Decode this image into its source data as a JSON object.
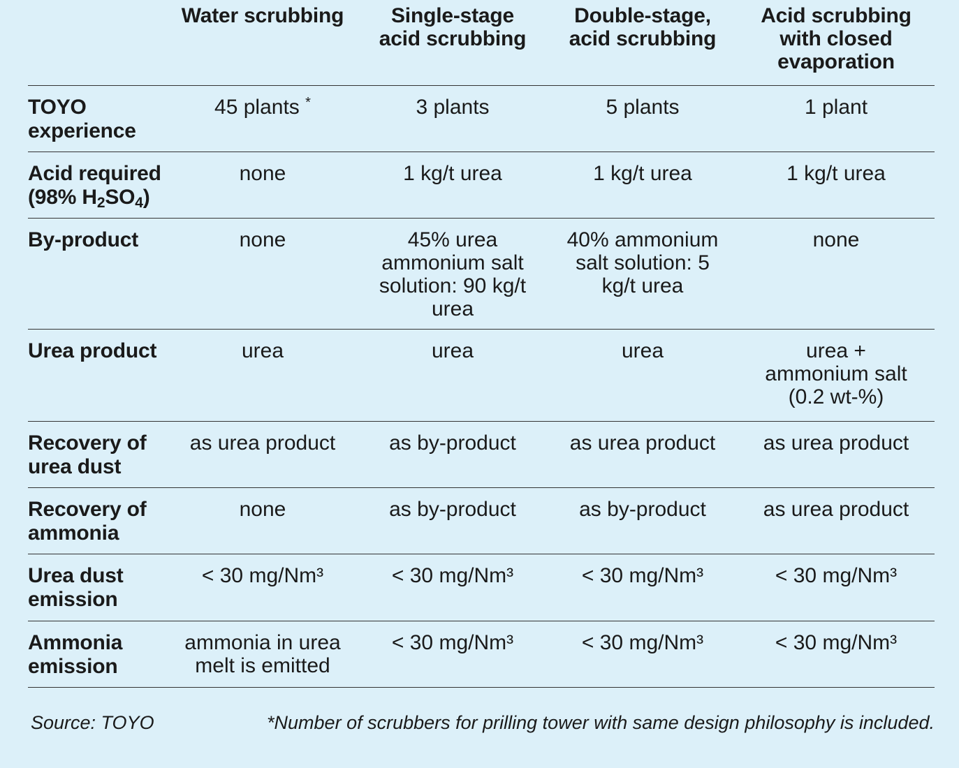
{
  "header": {
    "row_label": "",
    "columns": [
      "Water scrubbing",
      "Single-stage acid scrubbing",
      "Double-stage, acid scrubbing",
      "Acid scrubbing with closed evaporation"
    ]
  },
  "rows": [
    {
      "label": "TOYO experience",
      "cells": [
        "45 plants",
        "3 plants",
        "5 plants",
        "1 plant"
      ],
      "footnote_mark": "*"
    },
    {
      "label_main": "Acid required",
      "label_sub": "(98% H",
      "label_h2_sub": "2",
      "label_so": "SO",
      "label_so_sub": "4",
      "label_close": ")",
      "cells": [
        "none",
        "1 kg/t urea",
        "1 kg/t urea",
        "1 kg/t urea"
      ]
    },
    {
      "label": "By-product",
      "cells": [
        "none",
        "45% urea ammonium salt solution: 90 kg/t urea",
        "40% ammonium salt solution: 5 kg/t urea",
        "none"
      ]
    },
    {
      "label": "Urea product",
      "cells": [
        "urea",
        "urea",
        "urea",
        "urea + ammonium salt (0.2 wt-%)"
      ]
    },
    {
      "label": "Recovery of urea dust",
      "cells": [
        "as urea product",
        "as by-product",
        "as urea product",
        "as urea product"
      ]
    },
    {
      "label": "Recovery of ammonia",
      "cells": [
        "none",
        "as by-product",
        "as by-product",
        "as urea product"
      ]
    },
    {
      "label": "Urea dust emission",
      "cells": [
        "< 30 mg/Nm³",
        "< 30 mg/Nm³",
        "< 30 mg/Nm³",
        "< 30 mg/Nm³"
      ]
    },
    {
      "label": "Ammonia emission",
      "cells": [
        "ammonia in urea melt is emitted",
        "< 30 mg/Nm³",
        "< 30 mg/Nm³",
        "< 30 mg/Nm³"
      ]
    }
  ],
  "footer": {
    "source": "Source: TOYO",
    "note": "*Number of scrubbers for prilling tower with same design philosophy is included."
  },
  "colors": {
    "background": "#dcf0f9",
    "text": "#1a1a1a",
    "rule": "#333333"
  }
}
